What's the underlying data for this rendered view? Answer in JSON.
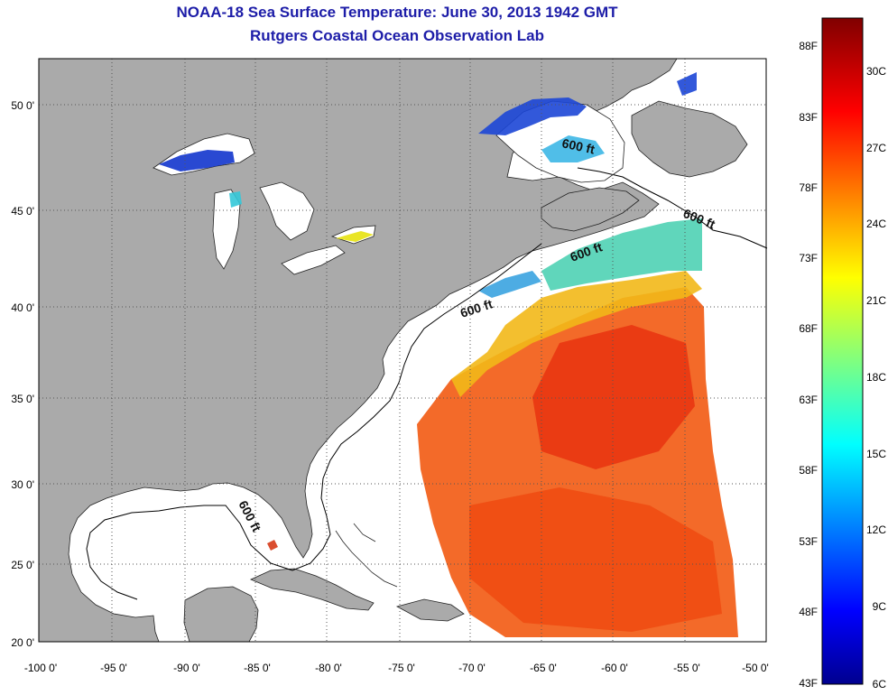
{
  "title": "NOAA-18 Sea Surface Temperature:  June 30, 2013 1942 GMT",
  "subtitle": "Rutgers Coastal Ocean Observation Lab",
  "map": {
    "lon_range": [
      -100,
      -50
    ],
    "lat_range": [
      20,
      52
    ],
    "lon_ticks": [
      "-100 0'",
      "-95 0'",
      "-90 0'",
      "-85 0'",
      "-80 0'",
      "-75 0'",
      "-70 0'",
      "-65 0'",
      "-60 0'",
      "-55 0'",
      "-50 0'"
    ],
    "lat_ticks": [
      "20 0'",
      "25 0'",
      "30 0'",
      "35 0'",
      "40 0'",
      "45 0'",
      "50 0'"
    ],
    "contour_label": "600 ft",
    "colors": {
      "land": "#aaaaaa",
      "ocean_nodata": "#ffffff",
      "graticule": "#555555"
    }
  },
  "colorbar": {
    "f_labels": [
      "88F",
      "83F",
      "78F",
      "73F",
      "68F",
      "63F",
      "58F",
      "53F",
      "48F",
      "43F"
    ],
    "c_labels": [
      "30C",
      "27C",
      "24C",
      "21C",
      "18C",
      "15C",
      "12C",
      "9C",
      "6C"
    ],
    "colormap": "jet"
  }
}
